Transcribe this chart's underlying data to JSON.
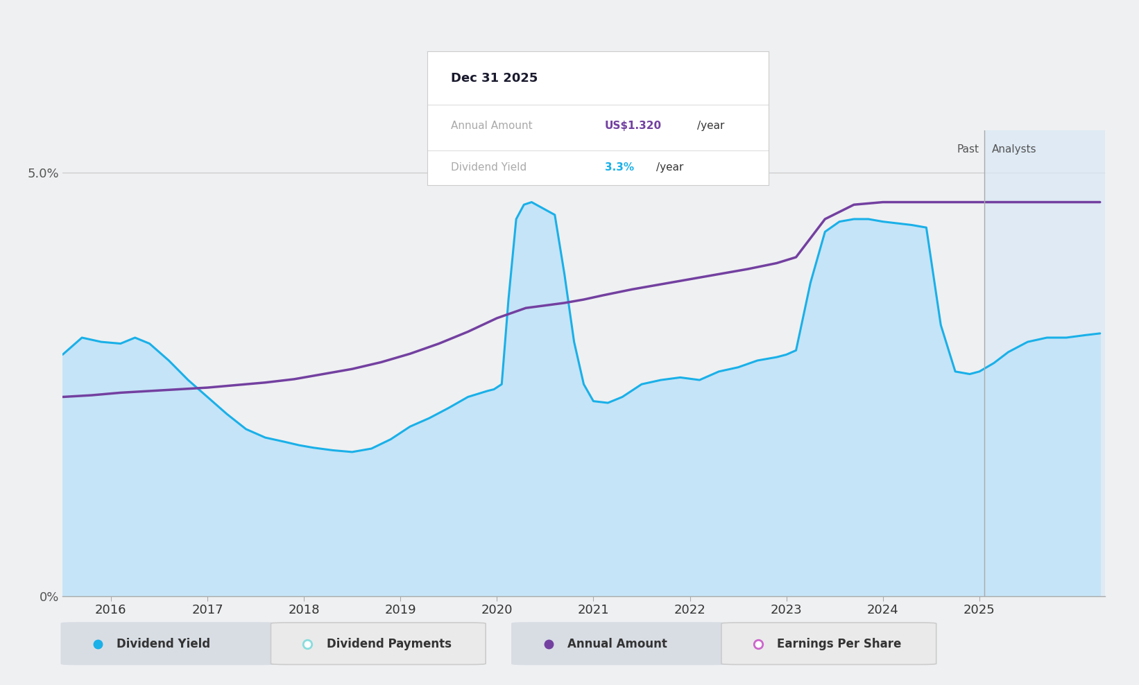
{
  "background_color": "#eff0f2",
  "chart_bg": "#eff0f2",
  "ylim": [
    0,
    5.5
  ],
  "xlim": [
    2015.5,
    2026.3
  ],
  "ytick_vals": [
    0,
    5.0
  ],
  "ytick_labels": [
    "0%",
    "5.0%"
  ],
  "xticks": [
    2016,
    2017,
    2018,
    2019,
    2020,
    2021,
    2022,
    2023,
    2024,
    2025
  ],
  "past_divider": 2025.05,
  "dividend_yield_color": "#1ab0e8",
  "dividend_yield_fill": "#c5e4f7",
  "annual_amount_color": "#7340a0",
  "analysts_fill": "#dae8f5",
  "tooltip_date": "Dec 31 2025",
  "tooltip_annual_label": "Annual Amount",
  "tooltip_annual_value": "US$1.320",
  "tooltip_annual_suffix": "/year",
  "tooltip_annual_color": "#7340a0",
  "tooltip_yield_label": "Dividend Yield",
  "tooltip_yield_value": "3.3%",
  "tooltip_yield_suffix": "/year",
  "tooltip_yield_color": "#1ab0e8",
  "legend_items": [
    {
      "label": "Dividend Yield",
      "color": "#1ab0e8",
      "filled": true,
      "bg": "#d8dde4"
    },
    {
      "label": "Dividend Payments",
      "color": "#88dddd",
      "filled": false,
      "bg": "#eaeaea"
    },
    {
      "label": "Annual Amount",
      "color": "#7340a0",
      "filled": true,
      "bg": "#d8dde4"
    },
    {
      "label": "Earnings Per Share",
      "color": "#cc66cc",
      "filled": false,
      "bg": "#eaeaea"
    }
  ],
  "dividend_yield_x": [
    2015.5,
    2015.7,
    2015.9,
    2016.1,
    2016.25,
    2016.4,
    2016.6,
    2016.8,
    2017.0,
    2017.2,
    2017.4,
    2017.6,
    2017.8,
    2017.95,
    2018.1,
    2018.3,
    2018.5,
    2018.7,
    2018.9,
    2019.1,
    2019.3,
    2019.5,
    2019.7,
    2019.9,
    2019.97,
    2020.05,
    2020.12,
    2020.2,
    2020.28,
    2020.36,
    2020.44,
    2020.52,
    2020.6,
    2020.7,
    2020.8,
    2020.9,
    2021.0,
    2021.15,
    2021.3,
    2021.5,
    2021.7,
    2021.9,
    2022.1,
    2022.3,
    2022.5,
    2022.7,
    2022.9,
    2023.0,
    2023.1,
    2023.25,
    2023.4,
    2023.55,
    2023.7,
    2023.85,
    2024.0,
    2024.15,
    2024.3,
    2024.45,
    2024.6,
    2024.75,
    2024.9,
    2025.0,
    2025.15,
    2025.3,
    2025.5,
    2025.7,
    2025.9,
    2026.1,
    2026.25
  ],
  "dividend_yield_y": [
    2.85,
    3.05,
    3.0,
    2.98,
    3.05,
    2.98,
    2.78,
    2.55,
    2.35,
    2.15,
    1.97,
    1.87,
    1.82,
    1.78,
    1.75,
    1.72,
    1.7,
    1.74,
    1.85,
    2.0,
    2.1,
    2.22,
    2.35,
    2.42,
    2.44,
    2.5,
    3.5,
    4.45,
    4.62,
    4.65,
    4.6,
    4.55,
    4.5,
    3.8,
    3.0,
    2.5,
    2.3,
    2.28,
    2.35,
    2.5,
    2.55,
    2.58,
    2.55,
    2.65,
    2.7,
    2.78,
    2.82,
    2.85,
    2.9,
    3.7,
    4.3,
    4.42,
    4.45,
    4.45,
    4.42,
    4.4,
    4.38,
    4.35,
    3.2,
    2.65,
    2.62,
    2.65,
    2.75,
    2.88,
    3.0,
    3.05,
    3.05,
    3.08,
    3.1
  ],
  "annual_amount_x": [
    2015.5,
    2015.8,
    2016.1,
    2016.4,
    2016.7,
    2017.0,
    2017.3,
    2017.6,
    2017.9,
    2018.2,
    2018.5,
    2018.8,
    2019.1,
    2019.4,
    2019.7,
    2020.0,
    2020.3,
    2020.5,
    2020.7,
    2020.9,
    2021.1,
    2021.4,
    2021.7,
    2022.0,
    2022.3,
    2022.6,
    2022.9,
    2023.1,
    2023.4,
    2023.7,
    2024.0,
    2024.3,
    2024.6,
    2024.9,
    2025.1,
    2025.4,
    2025.7,
    2026.0,
    2026.25
  ],
  "annual_amount_y": [
    2.35,
    2.37,
    2.4,
    2.42,
    2.44,
    2.46,
    2.49,
    2.52,
    2.56,
    2.62,
    2.68,
    2.76,
    2.86,
    2.98,
    3.12,
    3.28,
    3.4,
    3.43,
    3.46,
    3.5,
    3.55,
    3.62,
    3.68,
    3.74,
    3.8,
    3.86,
    3.93,
    4.0,
    4.45,
    4.62,
    4.65,
    4.65,
    4.65,
    4.65,
    4.65,
    4.65,
    4.65,
    4.65,
    4.65
  ]
}
